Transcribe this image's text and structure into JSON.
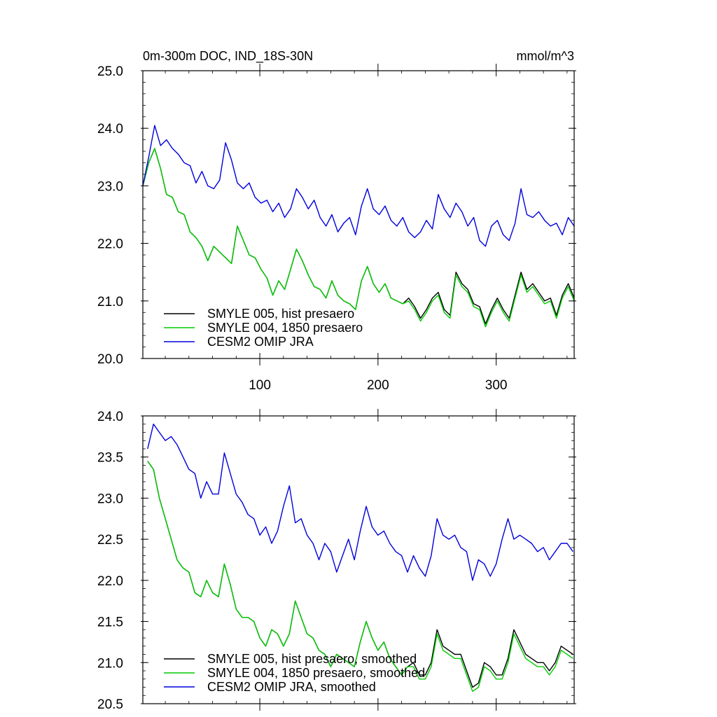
{
  "chart_data": [
    {
      "type": "line",
      "title": "0m-300m DOC, IND_18S-30N",
      "units": "mmol/m^3",
      "xlim": [
        1,
        366
      ],
      "ylim": [
        20.0,
        25.0
      ],
      "xticks": [
        100,
        200,
        300
      ],
      "yticks": [
        "20.0",
        "21.0",
        "22.0",
        "23.0",
        "24.0",
        "25.0"
      ],
      "x": [
        1,
        6,
        11,
        16,
        21,
        26,
        31,
        36,
        41,
        46,
        51,
        56,
        61,
        66,
        71,
        76,
        81,
        86,
        91,
        96,
        101,
        106,
        111,
        116,
        121,
        126,
        131,
        136,
        141,
        146,
        151,
        156,
        161,
        166,
        171,
        176,
        181,
        186,
        191,
        196,
        201,
        206,
        211,
        216,
        221,
        226,
        231,
        236,
        241,
        246,
        251,
        256,
        261,
        266,
        271,
        276,
        281,
        286,
        291,
        296,
        301,
        306,
        311,
        316,
        321,
        326,
        331,
        336,
        341,
        346,
        351,
        356,
        361,
        366
      ],
      "series": [
        {
          "name": "SMYLE 005, hist presaero",
          "color": "#000000",
          "values": [
            23.0,
            23.4,
            23.65,
            23.3,
            22.85,
            22.8,
            22.55,
            22.5,
            22.2,
            22.1,
            21.95,
            21.7,
            21.95,
            21.85,
            21.75,
            21.65,
            22.3,
            22.05,
            21.8,
            21.75,
            21.55,
            21.4,
            21.1,
            21.35,
            21.2,
            21.55,
            21.9,
            21.7,
            21.45,
            21.25,
            21.2,
            21.05,
            21.35,
            21.1,
            21.0,
            20.95,
            20.85,
            21.35,
            21.6,
            21.3,
            21.15,
            21.3,
            21.05,
            21.0,
            20.95,
            21.05,
            20.9,
            20.7,
            20.85,
            21.05,
            21.15,
            20.85,
            20.75,
            21.5,
            21.3,
            21.2,
            20.95,
            20.9,
            20.6,
            20.85,
            21.05,
            20.85,
            20.7,
            21.1,
            21.5,
            21.2,
            21.3,
            21.15,
            21.0,
            21.05,
            20.75,
            21.1,
            21.3,
            21.05
          ]
        },
        {
          "name": "SMYLE 004, 1850 presaero",
          "color": "#00cc00",
          "values": [
            23.0,
            23.4,
            23.65,
            23.3,
            22.85,
            22.8,
            22.55,
            22.5,
            22.2,
            22.1,
            21.95,
            21.7,
            21.95,
            21.85,
            21.75,
            21.65,
            22.3,
            22.05,
            21.8,
            21.75,
            21.55,
            21.4,
            21.1,
            21.35,
            21.2,
            21.55,
            21.9,
            21.7,
            21.45,
            21.25,
            21.2,
            21.05,
            21.35,
            21.1,
            21.0,
            20.95,
            20.85,
            21.35,
            21.6,
            21.3,
            21.15,
            21.3,
            21.05,
            21.0,
            20.95,
            21.0,
            20.85,
            20.65,
            20.8,
            21.0,
            21.1,
            20.8,
            20.7,
            21.45,
            21.25,
            21.15,
            20.9,
            20.85,
            20.55,
            20.8,
            21.0,
            20.8,
            20.65,
            21.05,
            21.45,
            21.15,
            21.25,
            21.1,
            20.95,
            21.0,
            20.7,
            21.05,
            21.25,
            21.0
          ]
        },
        {
          "name": "CESM2 OMIP JRA",
          "color": "#0000dd",
          "values": [
            23.0,
            23.5,
            24.05,
            23.7,
            23.8,
            23.65,
            23.55,
            23.4,
            23.35,
            23.05,
            23.25,
            23.0,
            22.95,
            23.1,
            23.75,
            23.45,
            23.05,
            22.95,
            23.05,
            22.8,
            22.7,
            22.75,
            22.55,
            22.7,
            22.45,
            22.6,
            22.95,
            22.8,
            22.6,
            22.75,
            22.45,
            22.3,
            22.5,
            22.2,
            22.35,
            22.45,
            22.15,
            22.65,
            22.95,
            22.6,
            22.5,
            22.65,
            22.4,
            22.3,
            22.45,
            22.2,
            22.1,
            22.2,
            22.4,
            22.25,
            22.85,
            22.6,
            22.45,
            22.7,
            22.55,
            22.3,
            22.45,
            22.05,
            21.95,
            22.3,
            22.4,
            22.15,
            22.05,
            22.35,
            22.95,
            22.5,
            22.45,
            22.55,
            22.4,
            22.3,
            22.35,
            22.15,
            22.45,
            22.3
          ]
        }
      ]
    },
    {
      "type": "line",
      "xlim": [
        1,
        366
      ],
      "ylim": [
        20.5,
        24.0
      ],
      "xticks": [
        100,
        200,
        300
      ],
      "yticks": [
        "20.5",
        "21.0",
        "21.5",
        "22.0",
        "22.5",
        "23.0",
        "23.5",
        "24.0"
      ],
      "x": [
        5,
        10,
        15,
        20,
        25,
        30,
        35,
        40,
        45,
        50,
        55,
        60,
        65,
        70,
        75,
        80,
        85,
        90,
        95,
        100,
        105,
        110,
        115,
        120,
        125,
        130,
        135,
        140,
        145,
        150,
        155,
        160,
        165,
        170,
        175,
        180,
        185,
        190,
        195,
        200,
        205,
        210,
        215,
        220,
        225,
        230,
        235,
        240,
        245,
        250,
        255,
        260,
        265,
        270,
        275,
        280,
        285,
        290,
        295,
        300,
        305,
        310,
        315,
        320,
        325,
        330,
        335,
        340,
        345,
        350,
        355,
        360,
        365
      ],
      "series": [
        {
          "name": "SMYLE 005, hist presaero, smoothed",
          "color": "#000000",
          "values": [
            23.45,
            23.35,
            23.0,
            22.75,
            22.5,
            22.25,
            22.15,
            22.1,
            21.85,
            21.8,
            22.0,
            21.85,
            21.8,
            22.2,
            21.95,
            21.65,
            21.55,
            21.55,
            21.5,
            21.3,
            21.2,
            21.4,
            21.35,
            21.2,
            21.35,
            21.75,
            21.55,
            21.35,
            21.3,
            21.15,
            21.1,
            20.95,
            21.1,
            21.05,
            21.0,
            20.95,
            21.25,
            21.5,
            21.3,
            21.15,
            21.25,
            21.05,
            20.95,
            20.85,
            20.95,
            21.0,
            20.85,
            20.85,
            21.0,
            21.4,
            21.2,
            21.15,
            21.1,
            21.1,
            20.9,
            20.7,
            20.75,
            21.0,
            20.95,
            20.85,
            20.85,
            21.05,
            21.4,
            21.25,
            21.1,
            21.05,
            21.0,
            21.0,
            20.9,
            21.0,
            21.2,
            21.15,
            21.1
          ]
        },
        {
          "name": "SMYLE 004, 1850 presaero, smoothed",
          "color": "#00cc00",
          "values": [
            23.45,
            23.35,
            23.0,
            22.75,
            22.5,
            22.25,
            22.15,
            22.1,
            21.85,
            21.8,
            22.0,
            21.85,
            21.8,
            22.2,
            21.95,
            21.65,
            21.55,
            21.55,
            21.5,
            21.3,
            21.2,
            21.4,
            21.35,
            21.2,
            21.35,
            21.75,
            21.55,
            21.35,
            21.3,
            21.15,
            21.1,
            20.95,
            21.1,
            21.05,
            21.0,
            20.95,
            21.25,
            21.5,
            21.3,
            21.15,
            21.25,
            21.05,
            20.95,
            20.85,
            20.95,
            20.95,
            20.8,
            20.8,
            20.95,
            21.35,
            21.15,
            21.1,
            21.05,
            21.05,
            20.85,
            20.65,
            20.7,
            20.95,
            20.9,
            20.8,
            20.8,
            21.0,
            21.35,
            21.2,
            21.05,
            21.0,
            20.95,
            20.95,
            20.85,
            20.95,
            21.15,
            21.1,
            21.05
          ]
        },
        {
          "name": "CESM2 OMIP JRA, smoothed",
          "color": "#0000dd",
          "values": [
            23.6,
            23.9,
            23.8,
            23.7,
            23.75,
            23.65,
            23.5,
            23.35,
            23.3,
            23.0,
            23.2,
            23.05,
            23.05,
            23.55,
            23.3,
            23.05,
            22.95,
            22.8,
            22.75,
            22.55,
            22.65,
            22.45,
            22.6,
            22.9,
            23.15,
            22.7,
            22.75,
            22.55,
            22.45,
            22.25,
            22.45,
            22.35,
            22.1,
            22.3,
            22.5,
            22.25,
            22.6,
            22.9,
            22.65,
            22.55,
            22.6,
            22.45,
            22.35,
            22.3,
            22.1,
            22.3,
            22.15,
            22.05,
            22.3,
            22.75,
            22.55,
            22.5,
            22.55,
            22.4,
            22.35,
            22.0,
            22.25,
            22.2,
            22.05,
            22.2,
            22.5,
            22.75,
            22.5,
            22.55,
            22.5,
            22.45,
            22.35,
            22.4,
            22.25,
            22.35,
            22.45,
            22.45,
            22.35
          ]
        }
      ]
    }
  ]
}
